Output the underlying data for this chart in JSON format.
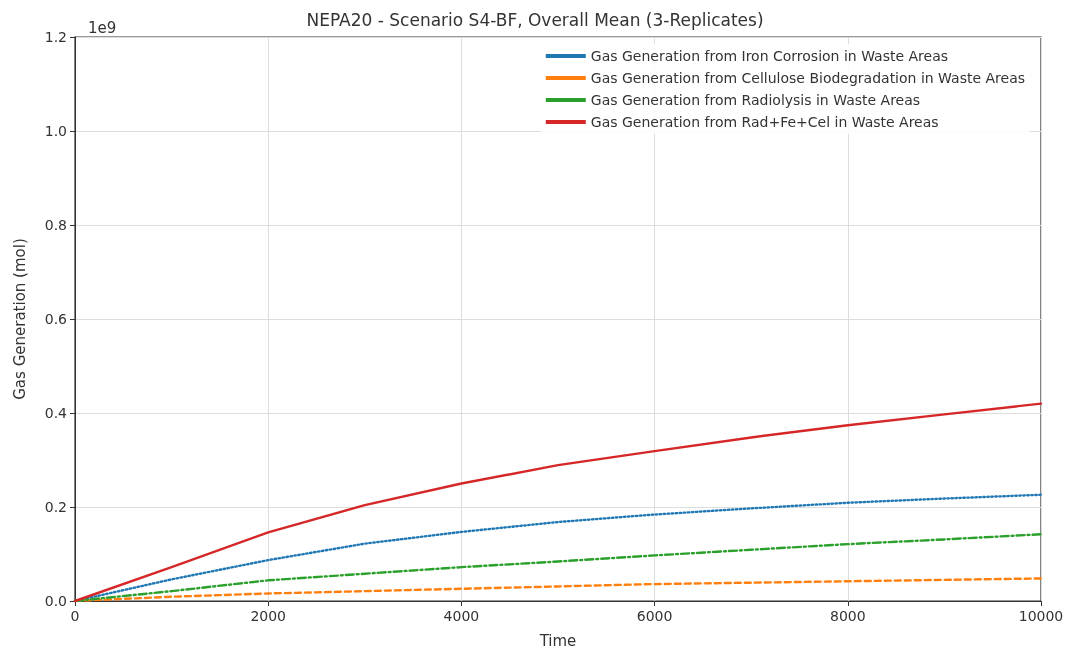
{
  "chart_data": {
    "type": "line",
    "title": "NEPA20 - Scenario S4-BF, Overall Mean (3-Replicates)",
    "xlabel": "Time",
    "ylabel": "Gas Generation (mol)",
    "annotations": [
      "1e9"
    ],
    "x": [
      0,
      1000,
      2000,
      3000,
      4000,
      5000,
      6000,
      7000,
      8000,
      9000,
      10000
    ],
    "series": [
      {
        "name": "Gas Generation from Iron Corrosion in Waste Areas",
        "color": "#1f77b4",
        "line_style": "dotted",
        "values": [
          0,
          0.046,
          0.087,
          0.122,
          0.147,
          0.168,
          0.184,
          0.197,
          0.209,
          0.218,
          0.226
        ]
      },
      {
        "name": "Gas Generation from Cellulose Biodegradation in Waste Areas",
        "color": "#ff7f0e",
        "line_style": "dashed",
        "values": [
          0,
          0.009,
          0.016,
          0.021,
          0.026,
          0.031,
          0.036,
          0.039,
          0.042,
          0.045,
          0.048
        ]
      },
      {
        "name": "Gas Generation from Radiolysis in Waste Areas",
        "color": "#2ca02c",
        "line_style": "dashdot",
        "values": [
          0,
          0.021,
          0.044,
          0.058,
          0.072,
          0.084,
          0.097,
          0.109,
          0.121,
          0.131,
          0.142
        ]
      },
      {
        "name": "Gas Generation from Rad+Fe+Cel in Waste Areas",
        "color": "#d62728",
        "line_style": "solid",
        "values": [
          0,
          0.072,
          0.146,
          0.204,
          0.25,
          0.289,
          0.319,
          0.348,
          0.374,
          0.397,
          0.42
        ]
      }
    ],
    "xlim": [
      0,
      10000
    ],
    "xticks": [
      0,
      2000,
      4000,
      6000,
      8000,
      10000
    ],
    "ylim": [
      0,
      1.2
    ],
    "yticks": [
      {
        "value": 0,
        "label": "0.0"
      },
      0.2,
      0.4,
      0.6,
      0.8,
      {
        "value": 1,
        "label": "1.0"
      },
      1.2
    ],
    "grid": true,
    "legend": "top right",
    "marker": "none"
  }
}
